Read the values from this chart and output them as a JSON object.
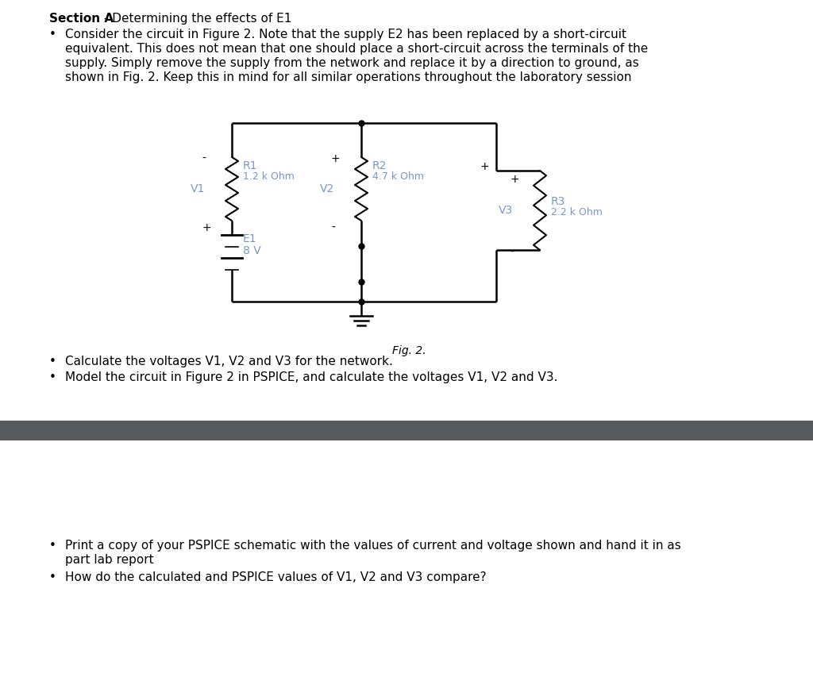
{
  "bg_color": "#ffffff",
  "text_color": "#000000",
  "blue_color": "#7b96c8",
  "section_title": "Section A",
  "section_subtitle": " - Determining the effects of E1",
  "bullet1_line1": "Consider the circuit in Figure 2. Note that the supply E2 has been replaced by a short-circuit",
  "bullet1_line2": "equivalent. This does not mean that one should place a short-circuit across the terminals of the",
  "bullet1_line3": "supply. Simply remove the supply from the network and replace it by a direction to ground, as",
  "bullet1_line4": "shown in Fig. 2. Keep this in mind for all similar operations throughout the laboratory session",
  "bullet2": "Calculate the voltages V1, V2 and V3 for the network.",
  "bullet3": "Model the circuit in Figure 2 in PSPICE, and calculate the voltages V1, V2 and V3.",
  "fig_caption": "Fig. 2.",
  "divider_color": "#555a5f",
  "circuit_color": "#000000",
  "label_color": "#7b96c8",
  "bullet4_line1": "Print a copy of your PSPICE schematic with the values of current and voltage shown and hand it in as",
  "bullet4_line2": "part lab report",
  "bullet5": "How do the calculated and PSPICE values of V1, V2 and V3 compare?",
  "font_family": "DejaVu Sans"
}
